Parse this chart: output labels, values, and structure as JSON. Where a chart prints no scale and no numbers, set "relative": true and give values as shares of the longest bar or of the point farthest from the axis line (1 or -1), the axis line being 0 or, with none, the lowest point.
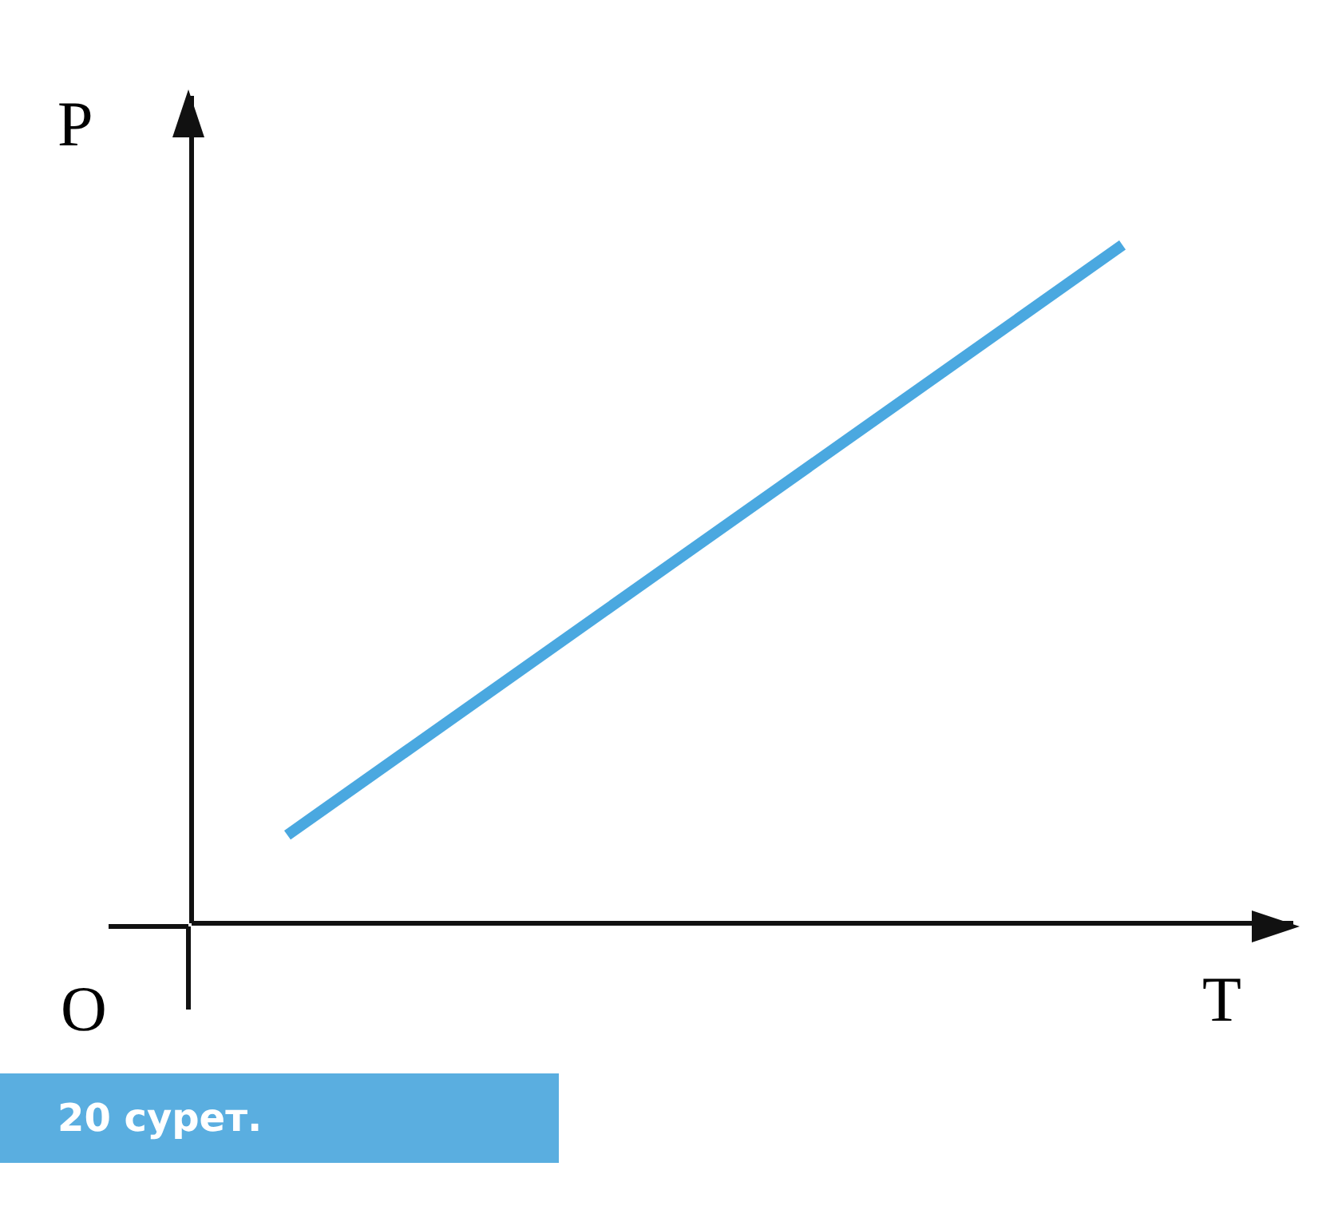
{
  "chart_data": {
    "type": "line",
    "relative": true,
    "xlabel": "T",
    "ylabel": "P",
    "annotations": [
      "O",
      "20 сурет."
    ],
    "categories": [
      null,
      null
    ],
    "series": [
      {
        "color": "#4aa8e0",
        "values": [
          0.13,
          1
        ]
      }
    ],
    "marker": "none",
    "line_style": "solid"
  }
}
